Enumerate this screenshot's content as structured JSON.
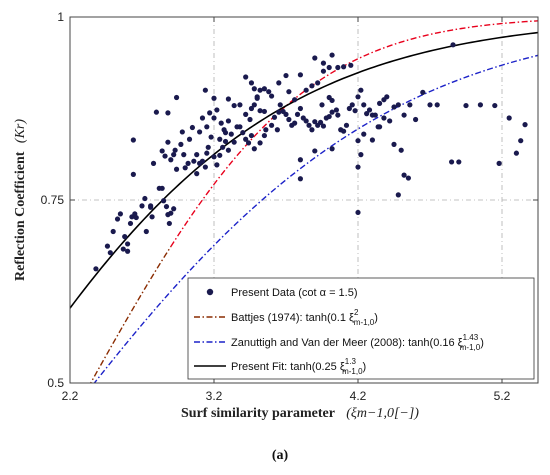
{
  "chart_data": {
    "type": "scatter",
    "caption": "(a)",
    "xlabel_text": "Surf similarity parameter",
    "xlabel_math": "(ξm−1,0[−])",
    "ylabel_text": "Reflection Coefficient",
    "ylabel_math": "(Kr)",
    "xlim": [
      2.2,
      5.45
    ],
    "ylim": [
      0.5,
      1.0
    ],
    "x_ticks": [
      2.2,
      3.2,
      4.2,
      5.2
    ],
    "x_tick_labels": [
      "2.2",
      "3.2",
      "4.2",
      "5.2"
    ],
    "y_ticks": [
      0.5,
      0.75,
      1.0
    ],
    "y_tick_labels": [
      "0.5",
      "0.75",
      "1"
    ],
    "grid": true,
    "legend_position": "bottom-right",
    "series": [
      {
        "name": "Present Data (cot α = 1.5)",
        "kind": "scatter",
        "color": "#1a1a4e",
        "points": [
          [
            2.38,
            0.656
          ],
          [
            2.46,
            0.687
          ],
          [
            2.48,
            0.678
          ],
          [
            2.5,
            0.707
          ],
          [
            2.55,
            0.731
          ],
          [
            2.53,
            0.724
          ],
          [
            2.58,
            0.7
          ],
          [
            2.62,
            0.718
          ],
          [
            2.6,
            0.69
          ],
          [
            2.57,
            0.683
          ],
          [
            2.6,
            0.68
          ],
          [
            2.63,
            0.727
          ],
          [
            2.66,
            0.726
          ],
          [
            2.65,
            0.731
          ],
          [
            2.7,
            0.742
          ],
          [
            2.72,
            0.752
          ],
          [
            2.76,
            0.74
          ],
          [
            2.76,
            0.742
          ],
          [
            2.77,
            0.727
          ],
          [
            2.73,
            0.707
          ],
          [
            2.64,
            0.785
          ],
          [
            2.64,
            0.832
          ],
          [
            2.82,
            0.766
          ],
          [
            2.84,
            0.766
          ],
          [
            2.85,
            0.749
          ],
          [
            2.87,
            0.741
          ],
          [
            2.88,
            0.73
          ],
          [
            2.89,
            0.718
          ],
          [
            2.9,
            0.732
          ],
          [
            2.92,
            0.738
          ],
          [
            2.78,
            0.8
          ],
          [
            2.84,
            0.817
          ],
          [
            2.86,
            0.81
          ],
          [
            2.88,
            0.829
          ],
          [
            2.9,
            0.805
          ],
          [
            2.92,
            0.812
          ],
          [
            2.94,
            0.792
          ],
          [
            2.93,
            0.818
          ],
          [
            2.97,
            0.826
          ],
          [
            2.99,
            0.812
          ],
          [
            2.8,
            0.87
          ],
          [
            2.88,
            0.869
          ],
          [
            2.94,
            0.89
          ],
          [
            2.98,
            0.843
          ],
          [
            3.0,
            0.794
          ],
          [
            3.02,
            0.8
          ],
          [
            3.03,
            0.833
          ],
          [
            3.05,
            0.849
          ],
          [
            3.08,
            0.812
          ],
          [
            3.06,
            0.803
          ],
          [
            3.08,
            0.786
          ],
          [
            3.1,
            0.8
          ],
          [
            3.12,
            0.803
          ],
          [
            3.14,
            0.795
          ],
          [
            3.15,
            0.814
          ],
          [
            3.16,
            0.822
          ],
          [
            3.18,
            0.836
          ],
          [
            3.2,
            0.809
          ],
          [
            3.22,
            0.798
          ],
          [
            3.24,
            0.811
          ],
          [
            3.1,
            0.843
          ],
          [
            3.12,
            0.862
          ],
          [
            3.15,
            0.85
          ],
          [
            3.17,
            0.869
          ],
          [
            3.2,
            0.862
          ],
          [
            3.22,
            0.873
          ],
          [
            3.25,
            0.855
          ],
          [
            3.27,
            0.846
          ],
          [
            3.28,
            0.842
          ],
          [
            3.3,
            0.858
          ],
          [
            3.24,
            0.833
          ],
          [
            3.26,
            0.822
          ],
          [
            3.28,
            0.83
          ],
          [
            3.3,
            0.818
          ],
          [
            3.32,
            0.84
          ],
          [
            3.34,
            0.829
          ],
          [
            3.36,
            0.85
          ],
          [
            3.38,
            0.85
          ],
          [
            3.4,
            0.842
          ],
          [
            3.42,
            0.833
          ],
          [
            3.3,
            0.888
          ],
          [
            3.34,
            0.879
          ],
          [
            3.38,
            0.88
          ],
          [
            3.42,
            0.867
          ],
          [
            3.45,
            0.86
          ],
          [
            3.46,
            0.875
          ],
          [
            3.48,
            0.88
          ],
          [
            3.5,
            0.889
          ],
          [
            3.52,
            0.872
          ],
          [
            3.55,
            0.871
          ],
          [
            3.2,
            0.889
          ],
          [
            3.14,
            0.9
          ],
          [
            3.42,
            0.918
          ],
          [
            3.46,
            0.91
          ],
          [
            3.48,
            0.902
          ],
          [
            3.5,
            0.891
          ],
          [
            3.52,
            0.9
          ],
          [
            3.55,
            0.902
          ],
          [
            3.58,
            0.898
          ],
          [
            3.6,
            0.892
          ],
          [
            3.44,
            0.828
          ],
          [
            3.46,
            0.838
          ],
          [
            3.48,
            0.82
          ],
          [
            3.52,
            0.828
          ],
          [
            3.55,
            0.838
          ],
          [
            3.56,
            0.846
          ],
          [
            3.6,
            0.852
          ],
          [
            3.62,
            0.863
          ],
          [
            3.64,
            0.846
          ],
          [
            3.65,
            0.87
          ],
          [
            3.66,
            0.88
          ],
          [
            3.68,
            0.871
          ],
          [
            3.7,
            0.867
          ],
          [
            3.72,
            0.86
          ],
          [
            3.74,
            0.852
          ],
          [
            3.76,
            0.855
          ],
          [
            3.78,
            0.867
          ],
          [
            3.8,
            0.875
          ],
          [
            3.82,
            0.862
          ],
          [
            3.84,
            0.858
          ],
          [
            3.65,
            0.91
          ],
          [
            3.7,
            0.92
          ],
          [
            3.72,
            0.898
          ],
          [
            3.76,
            0.887
          ],
          [
            3.8,
            0.921
          ],
          [
            3.84,
            0.9
          ],
          [
            3.88,
            0.906
          ],
          [
            3.92,
            0.91
          ],
          [
            3.96,
            0.926
          ],
          [
            4.0,
            0.931
          ],
          [
            3.86,
            0.852
          ],
          [
            3.88,
            0.846
          ],
          [
            3.9,
            0.857
          ],
          [
            3.92,
            0.852
          ],
          [
            3.94,
            0.856
          ],
          [
            3.96,
            0.851
          ],
          [
            3.98,
            0.862
          ],
          [
            4.0,
            0.864
          ],
          [
            4.02,
            0.87
          ],
          [
            4.05,
            0.873
          ],
          [
            3.95,
            0.88
          ],
          [
            4.0,
            0.89
          ],
          [
            4.02,
            0.886
          ],
          [
            4.06,
            0.866
          ],
          [
            4.08,
            0.846
          ],
          [
            4.1,
            0.844
          ],
          [
            4.12,
            0.852
          ],
          [
            4.14,
            0.875
          ],
          [
            4.16,
            0.88
          ],
          [
            4.18,
            0.872
          ],
          [
            3.9,
            0.944
          ],
          [
            3.96,
            0.937
          ],
          [
            4.02,
            0.948
          ],
          [
            4.06,
            0.931
          ],
          [
            4.1,
            0.932
          ],
          [
            4.15,
            0.934
          ],
          [
            3.8,
            0.805
          ],
          [
            3.9,
            0.817
          ],
          [
            3.8,
            0.779
          ],
          [
            4.02,
            0.82
          ],
          [
            4.2,
            0.891
          ],
          [
            4.22,
            0.9
          ],
          [
            4.24,
            0.88
          ],
          [
            4.26,
            0.868
          ],
          [
            4.28,
            0.873
          ],
          [
            4.3,
            0.866
          ],
          [
            4.32,
            0.866
          ],
          [
            4.35,
            0.882
          ],
          [
            4.38,
            0.887
          ],
          [
            4.4,
            0.891
          ],
          [
            4.2,
            0.831
          ],
          [
            4.24,
            0.84
          ],
          [
            4.3,
            0.832
          ],
          [
            4.34,
            0.85
          ],
          [
            4.38,
            0.862
          ],
          [
            4.42,
            0.858
          ],
          [
            4.45,
            0.877
          ],
          [
            4.48,
            0.88
          ],
          [
            4.52,
            0.866
          ],
          [
            4.56,
            0.88
          ],
          [
            4.2,
            0.795
          ],
          [
            4.22,
            0.812
          ],
          [
            4.35,
            0.85
          ],
          [
            4.45,
            0.826
          ],
          [
            4.5,
            0.818
          ],
          [
            4.55,
            0.78
          ],
          [
            4.6,
            0.86
          ],
          [
            4.65,
            0.897
          ],
          [
            4.7,
            0.88
          ],
          [
            4.75,
            0.88
          ],
          [
            4.2,
            0.733
          ],
          [
            4.48,
            0.757
          ],
          [
            4.52,
            0.784
          ],
          [
            4.86,
            0.962
          ],
          [
            4.85,
            0.802
          ],
          [
            4.9,
            0.802
          ],
          [
            4.95,
            0.879
          ],
          [
            5.05,
            0.88
          ],
          [
            5.15,
            0.879
          ],
          [
            5.25,
            0.862
          ],
          [
            5.3,
            0.814
          ],
          [
            5.33,
            0.831
          ],
          [
            5.36,
            0.853
          ],
          [
            5.18,
            0.8
          ]
        ]
      },
      {
        "name": "Battjes (1974): tanh(0.1 ξ²m-1,0)",
        "kind": "line",
        "style": "dashdot",
        "color": "#8a2b00",
        "x_start": 2.2,
        "x_end": 2.9,
        "formula_coef": 0.1,
        "formula_exp": 2.0
      },
      {
        "name": "Battjes (1974) extension",
        "kind": "line",
        "style": "dashdot",
        "color": "#e8001c",
        "x_start": 2.9,
        "x_end": 5.45,
        "formula_coef": 0.1,
        "formula_exp": 2.0,
        "hide_legend": true
      },
      {
        "name": "Zanuttigh and Van der Meer (2008): tanh(0.16 ξ1.43m-1,0)",
        "kind": "line",
        "style": "dashdot",
        "color": "#1c22c8",
        "x_start": 2.2,
        "x_end": 5.45,
        "formula_coef": 0.16,
        "formula_exp": 1.43
      },
      {
        "name": "Present Fit: tanh(0.25 ξ1.3m-1,0)",
        "kind": "line",
        "style": "solid",
        "color": "#000000",
        "x_start": 2.2,
        "x_end": 5.45,
        "formula_coef": 0.25,
        "formula_exp": 1.3
      }
    ],
    "legend": {
      "entries": [
        {
          "key": "present-data",
          "marker": "dot",
          "color": "#1a1a4e",
          "text": "Present Data (cot α = 1.5)"
        },
        {
          "key": "battjes",
          "marker": "dashdot",
          "color": "#8a2b00",
          "text_main": "Battjes (1974): tanh(0.1 ξ",
          "sup": "2",
          "sub": "m-1,0",
          "tail": ")"
        },
        {
          "key": "zanuttigh",
          "marker": "dashdot",
          "color": "#1c22c8",
          "text_main": "Zanuttigh and Van der Meer (2008): tanh(0.16 ξ",
          "sup": "1.43",
          "sub": "m-1,0",
          "tail": ")"
        },
        {
          "key": "present-fit",
          "marker": "solid",
          "color": "#000000",
          "text_main": "Present Fit: tanh(0.25 ξ",
          "sup": "1.3",
          "sub": "m-1,0",
          "tail": ")"
        }
      ]
    }
  }
}
